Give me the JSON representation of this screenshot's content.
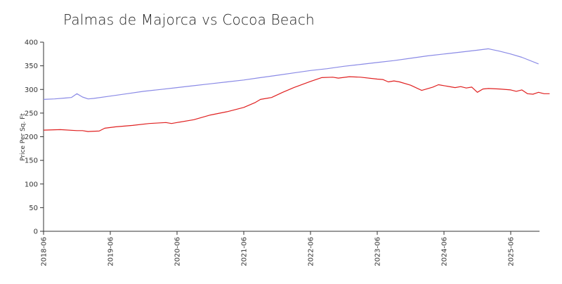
{
  "chart_data": {
    "type": "line",
    "title": "Palmas de Majorca vs Cocoa Beach",
    "ylabel": "Price Per Sq. Ft",
    "xlabel": "",
    "ylim": [
      0,
      400
    ],
    "yticks": [
      0,
      50,
      100,
      150,
      200,
      250,
      300,
      350,
      400
    ],
    "xlim": [
      "2018-06",
      "2025-11"
    ],
    "xticks": [
      "2018-06",
      "2019-06",
      "2020-06",
      "2021-06",
      "2022-06",
      "2023-06",
      "2024-06",
      "2025-06"
    ],
    "grid": false,
    "legend": "none",
    "series": [
      {
        "color": "#8a8ae6",
        "points": [
          [
            "2018-06",
            279
          ],
          [
            "2018-08",
            280
          ],
          [
            "2018-10",
            282
          ],
          [
            "2018-11",
            283
          ],
          [
            "2018-12",
            291
          ],
          [
            "2019-01",
            284
          ],
          [
            "2019-02",
            280
          ],
          [
            "2019-03",
            281
          ],
          [
            "2019-06",
            286
          ],
          [
            "2019-09",
            291
          ],
          [
            "2019-12",
            296
          ],
          [
            "2020-03",
            300
          ],
          [
            "2020-06",
            304
          ],
          [
            "2020-09",
            308
          ],
          [
            "2020-12",
            312
          ],
          [
            "2021-03",
            316
          ],
          [
            "2021-06",
            320
          ],
          [
            "2021-09",
            325
          ],
          [
            "2021-12",
            330
          ],
          [
            "2022-03",
            335
          ],
          [
            "2022-06",
            340
          ],
          [
            "2022-09",
            344
          ],
          [
            "2022-12",
            349
          ],
          [
            "2023-03",
            353
          ],
          [
            "2023-06",
            357
          ],
          [
            "2023-09",
            361
          ],
          [
            "2023-12",
            366
          ],
          [
            "2024-03",
            371
          ],
          [
            "2024-06",
            375
          ],
          [
            "2024-09",
            379
          ],
          [
            "2024-12",
            383
          ],
          [
            "2025-02",
            386
          ],
          [
            "2025-04",
            381
          ],
          [
            "2025-06",
            375
          ],
          [
            "2025-08",
            368
          ],
          [
            "2025-11",
            354
          ]
        ]
      },
      {
        "color": "#e02020",
        "points": [
          [
            "2018-06",
            214
          ],
          [
            "2018-09",
            215
          ],
          [
            "2018-12",
            213
          ],
          [
            "2019-01",
            213
          ],
          [
            "2019-02",
            211
          ],
          [
            "2019-04",
            212
          ],
          [
            "2019-05",
            218
          ],
          [
            "2019-07",
            221
          ],
          [
            "2019-10",
            224
          ],
          [
            "2020-01",
            228
          ],
          [
            "2020-04",
            230
          ],
          [
            "2020-05",
            228
          ],
          [
            "2020-06",
            230
          ],
          [
            "2020-09",
            236
          ],
          [
            "2020-12",
            246
          ],
          [
            "2021-03",
            253
          ],
          [
            "2021-06",
            262
          ],
          [
            "2021-08",
            272
          ],
          [
            "2021-09",
            279
          ],
          [
            "2021-11",
            283
          ],
          [
            "2022-01",
            294
          ],
          [
            "2022-03",
            304
          ],
          [
            "2022-06",
            317
          ],
          [
            "2022-08",
            325
          ],
          [
            "2022-10",
            326
          ],
          [
            "2022-11",
            324
          ],
          [
            "2023-01",
            327
          ],
          [
            "2023-03",
            326
          ],
          [
            "2023-06",
            322
          ],
          [
            "2023-07",
            321
          ],
          [
            "2023-08",
            316
          ],
          [
            "2023-09",
            318
          ],
          [
            "2023-10",
            316
          ],
          [
            "2023-12",
            309
          ],
          [
            "2024-02",
            298
          ],
          [
            "2024-04",
            305
          ],
          [
            "2024-05",
            310
          ],
          [
            "2024-08",
            304
          ],
          [
            "2024-09",
            306
          ],
          [
            "2024-10",
            303
          ],
          [
            "2024-11",
            305
          ],
          [
            "2024-12",
            294
          ],
          [
            "2025-01",
            301
          ],
          [
            "2025-02",
            302
          ],
          [
            "2025-04",
            301
          ],
          [
            "2025-06",
            299
          ],
          [
            "2025-07",
            296
          ],
          [
            "2025-08",
            299
          ],
          [
            "2025-09",
            291
          ],
          [
            "2025-10",
            290
          ],
          [
            "2025-11",
            294
          ],
          [
            "2025-12",
            291
          ],
          [
            "2026-01",
            291
          ]
        ]
      }
    ]
  }
}
